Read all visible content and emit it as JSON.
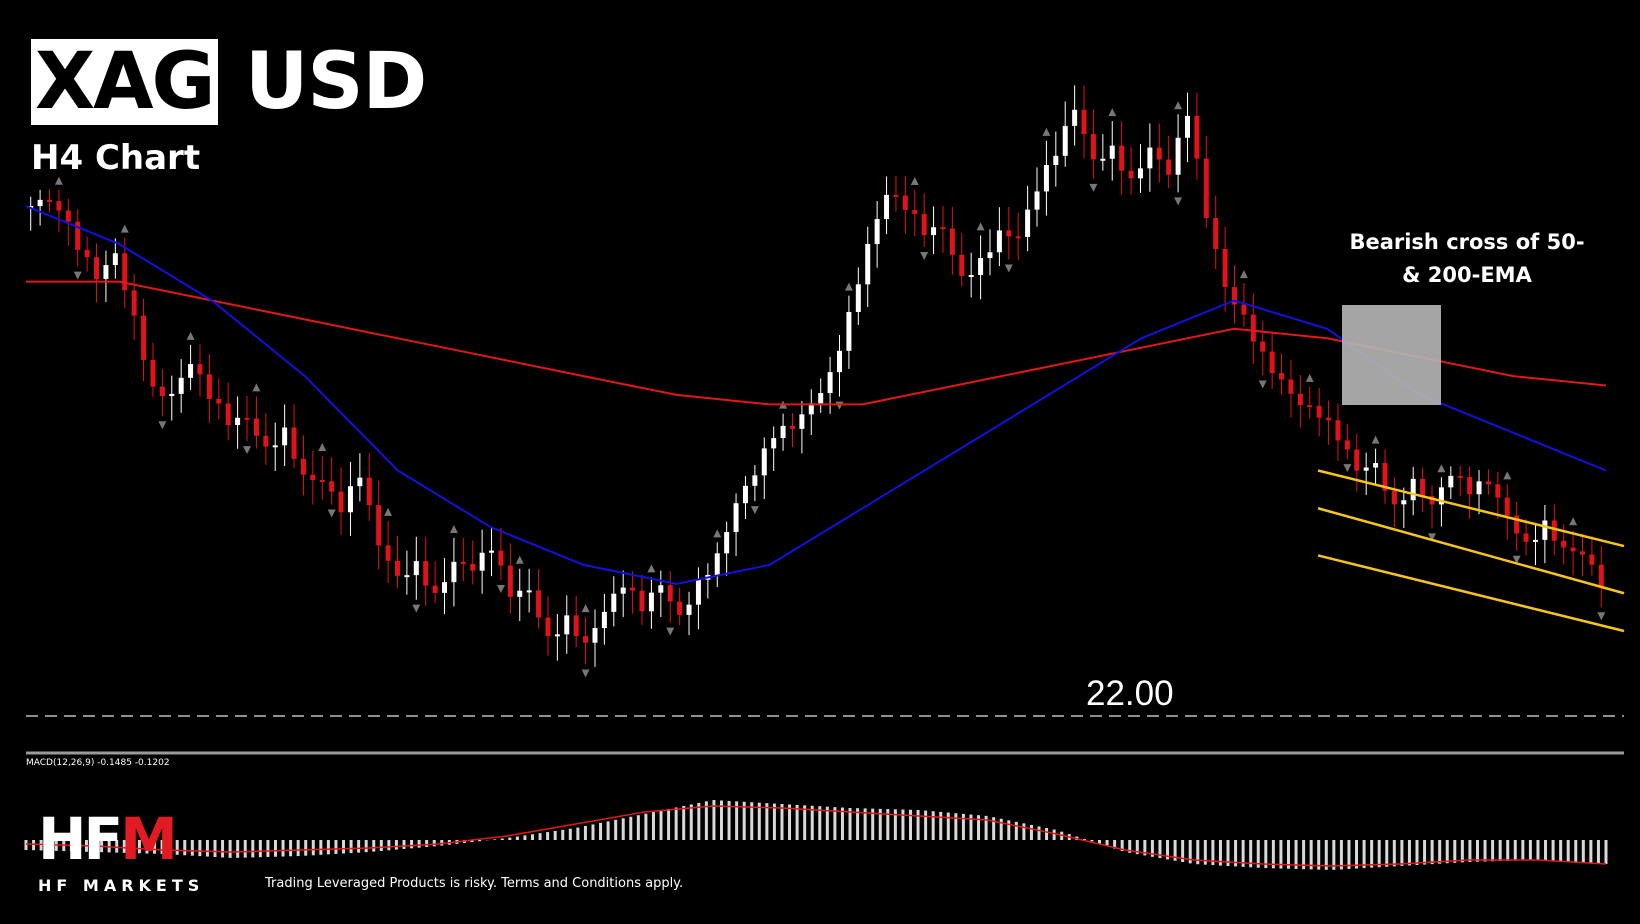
{
  "header": {
    "symbol_boxed": "XAG",
    "symbol_rest": "USD",
    "timeframe": "H4 Chart"
  },
  "annotation": {
    "line1": "Bearish cross of 50-",
    "line2": "& 200-EMA"
  },
  "price_level_label": "22.00",
  "indicator_label": "MACD(12,26,9) -0.1485 -0.1202",
  "logo": {
    "mark_prefix": "HF",
    "mark_accent": "M",
    "name": "HF MARKETS"
  },
  "disclaimer": "Trading Leveraged Products is risky. Terms and Conditions apply.",
  "colors": {
    "background": "#000000",
    "bull_candle": "#ffffff",
    "bear_candle": "#e0121b",
    "ema50": "#1111dd",
    "ema200": "#e01818",
    "channel": "#f5c518",
    "cross_box": "#b3b3b3",
    "macd_signal": "#e01818",
    "logo_accent": "#e21b23"
  },
  "chart_data": {
    "type": "candlestick",
    "timeframe": "H4",
    "ylim": [
      21.7,
      25.2
    ],
    "horizontal_level": 22.0,
    "candle_seeds": [
      24.4,
      24.3,
      24.1,
      24.0,
      24.2,
      23.9,
      23.5,
      23.4,
      23.5,
      23.3,
      23.2,
      23.3,
      23.2,
      23.3,
      23.0,
      22.9,
      22.7,
      22.9,
      22.6,
      22.5,
      22.6,
      22.4,
      22.5,
      22.4,
      22.5,
      22.3,
      22.4,
      22.2,
      22.3,
      22.1,
      22.2,
      22.3,
      22.2,
      22.4,
      22.3,
      22.5,
      22.6,
      22.8,
      22.9,
      23.1,
      23.2,
      23.4,
      23.6,
      23.9,
      24.2,
      24.4,
      24.3,
      24.2,
      24.3,
      24.1,
      24.2,
      24.3,
      24.2,
      24.4,
      24.6,
      24.9,
      24.7,
      24.8,
      24.6,
      24.7,
      24.5,
      24.8,
      24.3,
      24.0,
      23.9,
      23.7,
      23.5,
      23.3,
      23.2,
      23.1,
      23.0,
      23.1,
      22.9,
      23.0,
      22.8,
      22.9,
      22.8,
      22.9,
      22.8,
      22.7,
      22.8,
      22.6,
      22.5,
      22.3
    ],
    "ema50": [
      24.4,
      24.2,
      23.9,
      23.5,
      23.0,
      22.7,
      22.5,
      22.4,
      22.5,
      22.8,
      23.1,
      23.4,
      23.7,
      23.9,
      23.75,
      23.4,
      23.2,
      23.0
    ],
    "ema200": [
      24.0,
      24.0,
      23.9,
      23.8,
      23.7,
      23.6,
      23.5,
      23.4,
      23.35,
      23.35,
      23.45,
      23.55,
      23.65,
      23.75,
      23.7,
      23.6,
      23.5,
      23.45
    ],
    "channel": {
      "upper": [
        23.0,
        22.6
      ],
      "middle": [
        22.8,
        22.35
      ],
      "lower": [
        22.55,
        22.15
      ]
    },
    "macd": {
      "signal": [
        -0.02,
        -0.03,
        -0.05,
        -0.06,
        -0.05,
        -0.04,
        -0.02,
        0.02,
        0.08,
        0.14,
        0.17,
        0.16,
        0.14,
        0.12,
        0.1,
        0.03,
        -0.05,
        -0.1,
        -0.12,
        -0.13,
        -0.12,
        -0.1,
        -0.1,
        -0.12
      ],
      "histogram_seeds": [
        -0.05,
        -0.06,
        -0.07,
        -0.09,
        -0.08,
        -0.06,
        -0.03,
        0.01,
        0.06,
        0.13,
        0.2,
        0.18,
        0.16,
        0.15,
        0.12,
        0.05,
        -0.06,
        -0.12,
        -0.14,
        -0.15,
        -0.13,
        -0.11,
        -0.1,
        -0.12
      ]
    }
  }
}
